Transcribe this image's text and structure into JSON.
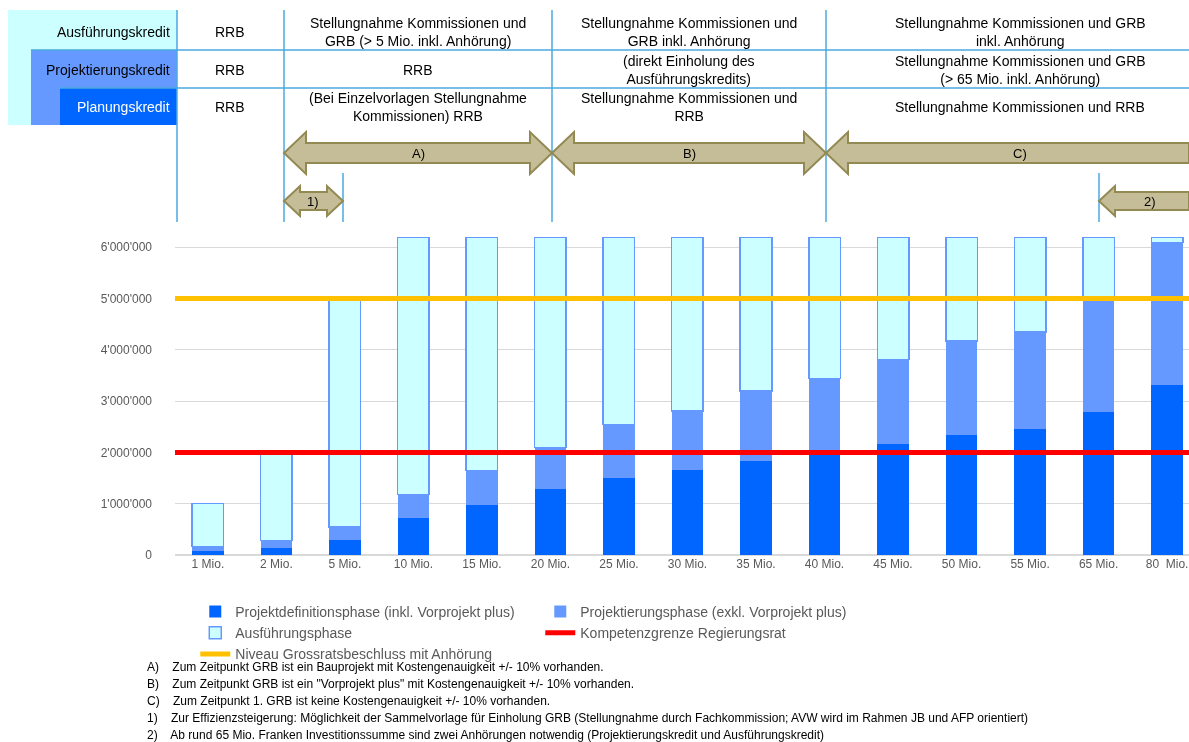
{
  "chart_data": {
    "type": "bar",
    "stacked": true,
    "categories": [
      "1 Mio.",
      "2 Mio.",
      "5 Mio.",
      "10 Mio.",
      "15 Mio.",
      "20 Mio.",
      "25 Mio.",
      "30 Mio.",
      "35 Mio.",
      "40 Mio.",
      "45 Mio.",
      "50 Mio.",
      "55 Mio.",
      "65 Mio.",
      "80  Mio."
    ],
    "series": [
      {
        "name": "Projektdefinitionsphase (inkl. Vorprojekt plus)",
        "color": "#0066ff",
        "values": [
          80000,
          140000,
          300000,
          720000,
          980000,
          1280000,
          1500000,
          1650000,
          1830000,
          2000000,
          2160000,
          2340000,
          2450000,
          2780000,
          3320000
        ]
      },
      {
        "name": "Projektierungsphase (exkl. Vorprojekt plus)",
        "color": "#6699ff",
        "values": [
          90000,
          140000,
          250000,
          460000,
          670000,
          820000,
          1040000,
          1160000,
          1370000,
          1440000,
          1650000,
          1830000,
          1900000,
          2220000,
          2770000
        ]
      },
      {
        "name": "Ausführungsphase",
        "color": "#ccffff",
        "values": [
          830000,
          1720000,
          4450000,
          5020000,
          4550000,
          4100000,
          3660000,
          3390000,
          3000000,
          2760000,
          2390000,
          2030000,
          1850000,
          1200000,
          110000
        ]
      }
    ],
    "ylim": [
      0,
      6200000
    ],
    "yticks": [
      0,
      {
        "value": 1000000,
        "label": "1'000'000"
      },
      {
        "value": 2000000,
        "label": "2'000'000"
      },
      {
        "value": 3000000,
        "label": "3'000'000"
      },
      {
        "value": 4000000,
        "label": "4'000'000"
      },
      {
        "value": 5000000,
        "label": "5'000'000"
      },
      {
        "value": 6000000,
        "label": "6'000'000"
      }
    ],
    "grid": "y",
    "legend": "bottom",
    "ref_lines": [
      {
        "axis": "y",
        "value": 2000000,
        "label": "Kompetenzgrenze Regierungsrat",
        "color": "#ff0000"
      },
      {
        "axis": "y",
        "value": 5000000,
        "label": "Niveau Grossratsbeschluss mit Anhörung",
        "color": "#ffc000"
      }
    ],
    "annotations": [
      "Ausführungskredit",
      "RRB",
      "Stellungnahme Kommissionen und\nGRB (> 5 Mio. inkl. Anhörung)",
      "Stellungnahme Kommissionen und\nGRB inkl. Anhörung",
      "Stellungnahme Kommissionen und GRB\ninkl. Anhörung",
      "Projektierungskredit",
      "RRB",
      "RRB",
      "(direkt Einholung des\nAusführungskredits)",
      "Stellungnahme Kommissionen und GRB\n(> 65 Mio. inkl. Anhörung)",
      "Planungskredit",
      "RRB",
      "(Bei Einzelvorlagen Stellungnahme\nKommissionen) RRB",
      "Stellungnahme Kommissionen und\nRRB",
      "Stellungnahme Kommissionen und RRB",
      "A)",
      "B)",
      "C)",
      "1)",
      "2)",
      "A)    Zum Zeitpunkt GRB ist ein Bauprojekt mit Kostengenauigkeit +/- 10% vorhanden.",
      "B)    Zum Zeitpunkt GRB ist ein \"Vorprojekt plus\" mit Kostengenauigkeit +/- 10% vorhanden.",
      "C)    Zum Zeitpunkt 1. GRB ist keine Kostengenauigkeit +/- 10% vorhanden.",
      "1)    Zur Effizienzsteigerung: Möglichkeit der Sammelvorlage für Einholung GRB (Stellungnahme durch Fachkommission; AVW wird im Rahmen JB und AFP orientiert)",
      "2)    Ab rund 65 Mio. Franken Investitionssumme sind zwei Anhörungen notwendig (Projektierungskredit und Ausführungskredit)"
    ]
  }
}
